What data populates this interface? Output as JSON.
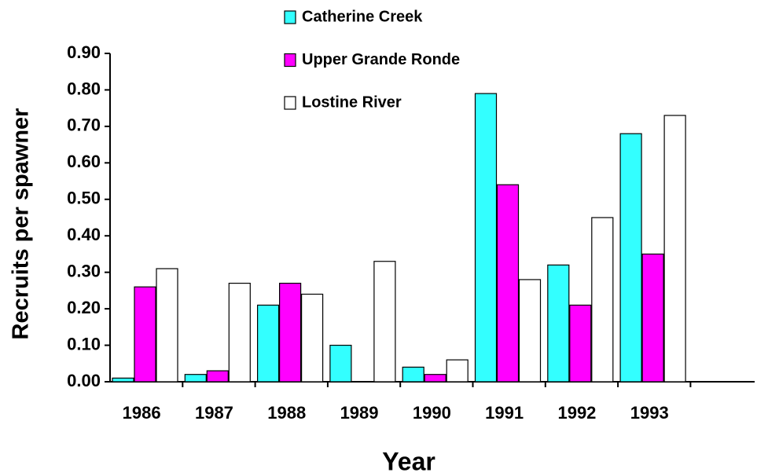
{
  "chart_data": {
    "type": "bar",
    "x_label": "Year",
    "y_label": "Recruits per spawner",
    "categories": [
      "1986",
      "1987",
      "1988",
      "1989",
      "1990",
      "1991",
      "1992",
      "1993",
      null
    ],
    "series": [
      {
        "name": "Catherine Creek",
        "color": "#33ffff",
        "values": [
          0.01,
          0.02,
          0.21,
          0.1,
          0.04,
          0.79,
          0.32,
          0.68,
          null
        ]
      },
      {
        "name": "Upper Grande Ronde",
        "color": "#ff00ff",
        "values": [
          0.26,
          0.03,
          0.27,
          null,
          0.02,
          0.54,
          0.21,
          0.35,
          null
        ]
      },
      {
        "name": "Lostine River",
        "color": "#ffffff",
        "values": [
          0.31,
          0.27,
          0.24,
          0.33,
          0.06,
          0.28,
          0.45,
          0.73,
          null
        ]
      }
    ],
    "ylim": [
      0,
      0.9
    ],
    "yticks": [
      {
        "value": 0,
        "label": "0.00"
      },
      {
        "value": 0.1,
        "label": "0.10"
      },
      {
        "value": 0.2,
        "label": "0.20"
      },
      {
        "value": 0.3,
        "label": "0.30"
      },
      {
        "value": 0.4,
        "label": "0.40"
      },
      {
        "value": 0.5,
        "label": "0.50"
      },
      {
        "value": 0.6,
        "label": "0.60"
      },
      {
        "value": 0.7,
        "label": "0.70"
      },
      {
        "value": 0.8,
        "label": "0.80"
      },
      {
        "value": 0.9,
        "label": "0.90"
      }
    ],
    "legend": "top"
  }
}
